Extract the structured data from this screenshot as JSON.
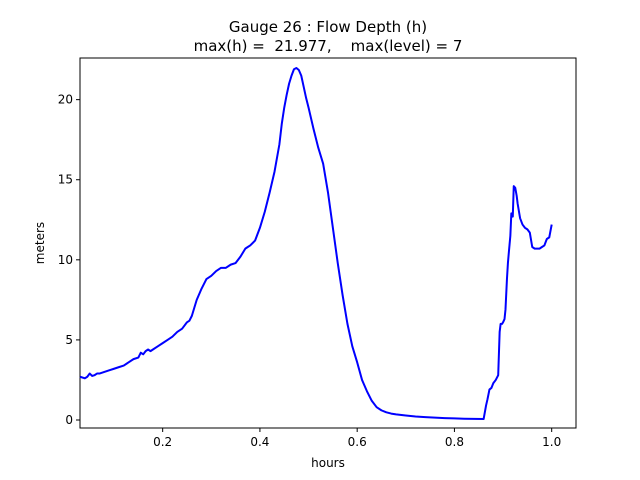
{
  "chart_data": {
    "type": "line",
    "title": "Gauge 26 : Flow Depth (h)",
    "subtitle": "max(h) =  21.977,    max(level) = 7",
    "xlabel": "hours",
    "ylabel": "meters",
    "xlim": [
      0.03,
      1.05
    ],
    "ylim": [
      -0.5,
      22.6
    ],
    "xticks": [
      0.2,
      0.4,
      0.6,
      0.8,
      1.0
    ],
    "xtick_labels": [
      "0.2",
      "0.4",
      "0.6",
      "0.8",
      "1.0"
    ],
    "yticks": [
      0,
      5,
      10,
      15,
      20
    ],
    "ytick_labels": [
      "0",
      "5",
      "10",
      "15",
      "20"
    ],
    "grid": false,
    "line_color": "#0000ff",
    "series": [
      {
        "x": [
          0.03,
          0.04,
          0.045,
          0.05,
          0.055,
          0.06,
          0.065,
          0.07,
          0.08,
          0.09,
          0.1,
          0.11,
          0.12,
          0.13,
          0.14,
          0.15,
          0.155,
          0.16,
          0.165,
          0.17,
          0.175,
          0.18,
          0.19,
          0.2,
          0.21,
          0.22,
          0.23,
          0.24,
          0.25,
          0.255,
          0.26,
          0.265,
          0.27,
          0.28,
          0.29,
          0.3,
          0.31,
          0.32,
          0.33,
          0.34,
          0.35,
          0.36,
          0.37,
          0.375,
          0.38,
          0.39,
          0.4,
          0.41,
          0.42,
          0.43,
          0.44,
          0.445,
          0.45,
          0.455,
          0.46,
          0.465,
          0.47,
          0.475,
          0.48,
          0.485,
          0.49,
          0.495,
          0.5,
          0.51,
          0.52,
          0.53,
          0.54,
          0.55,
          0.56,
          0.57,
          0.58,
          0.59,
          0.6,
          0.61,
          0.62,
          0.63,
          0.64,
          0.65,
          0.66,
          0.67,
          0.68,
          0.7,
          0.72,
          0.74,
          0.76,
          0.78,
          0.8,
          0.82,
          0.84,
          0.86,
          0.865,
          0.868,
          0.872,
          0.876,
          0.88,
          0.885,
          0.89,
          0.893,
          0.895,
          0.898,
          0.9,
          0.903,
          0.905,
          0.908,
          0.91,
          0.912,
          0.915,
          0.917,
          0.92,
          0.922,
          0.925,
          0.928,
          0.93,
          0.935,
          0.94,
          0.945,
          0.95,
          0.955,
          0.96,
          0.965,
          0.97,
          0.975,
          0.98,
          0.985,
          0.99,
          0.995,
          1.0
        ],
        "y": [
          2.7,
          2.6,
          2.7,
          2.9,
          2.75,
          2.8,
          2.9,
          2.9,
          3.0,
          3.1,
          3.2,
          3.3,
          3.4,
          3.6,
          3.8,
          3.9,
          4.2,
          4.1,
          4.3,
          4.4,
          4.3,
          4.4,
          4.6,
          4.8,
          5.0,
          5.2,
          5.5,
          5.7,
          6.1,
          6.2,
          6.5,
          7.0,
          7.5,
          8.2,
          8.8,
          9.0,
          9.3,
          9.5,
          9.5,
          9.7,
          9.8,
          10.2,
          10.7,
          10.8,
          10.9,
          11.2,
          12.0,
          13.0,
          14.2,
          15.5,
          17.2,
          18.5,
          19.5,
          20.3,
          21.0,
          21.5,
          21.9,
          21.977,
          21.85,
          21.5,
          20.8,
          20.1,
          19.5,
          18.2,
          17.0,
          16.0,
          14.2,
          12.0,
          9.8,
          7.8,
          6.0,
          4.6,
          3.6,
          2.5,
          1.8,
          1.2,
          0.8,
          0.6,
          0.48,
          0.4,
          0.35,
          0.28,
          0.22,
          0.18,
          0.15,
          0.12,
          0.1,
          0.08,
          0.07,
          0.06,
          0.9,
          1.3,
          1.9,
          2.0,
          2.3,
          2.5,
          2.8,
          5.5,
          6.0,
          6.0,
          6.1,
          6.3,
          6.9,
          8.8,
          9.8,
          10.5,
          11.5,
          12.9,
          12.7,
          14.6,
          14.5,
          14.0,
          13.5,
          12.6,
          12.2,
          12.0,
          11.9,
          11.7,
          10.8,
          10.7,
          10.7,
          10.7,
          10.8,
          10.9,
          11.3,
          11.4,
          12.2
        ]
      }
    ]
  }
}
